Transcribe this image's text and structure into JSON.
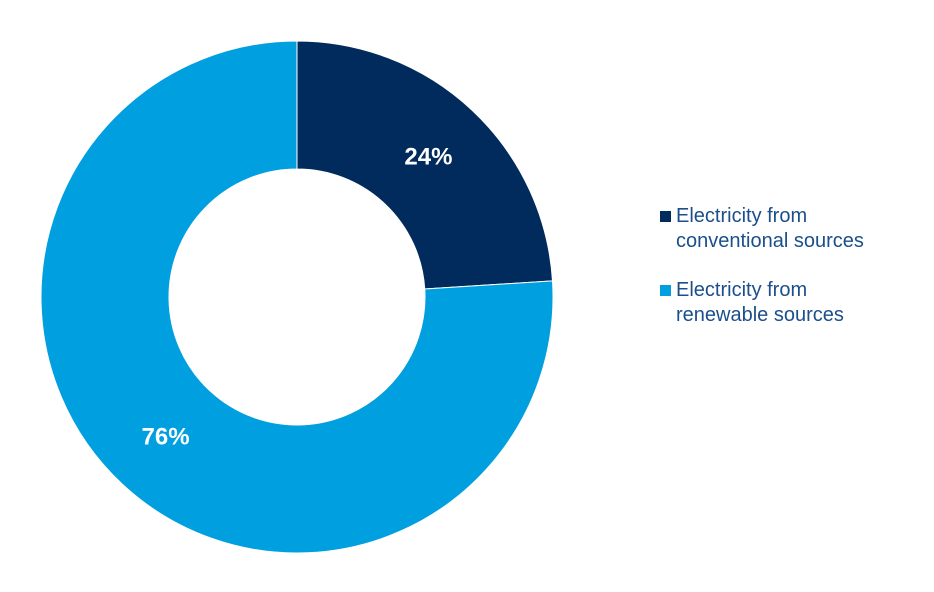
{
  "chart_data": {
    "type": "pie",
    "variant": "donut",
    "title": "",
    "legend_position": "right",
    "slices": [
      {
        "name": "Electricity from conventional sources",
        "value": 24,
        "label": "24%",
        "color": "#002B5C",
        "legend_text": "Electricity from\nconventional sources"
      },
      {
        "name": "Electricity from renewable sources",
        "value": 76,
        "label": "76%",
        "color": "#009FDF",
        "legend_text": "Electricity from\nrenewable sources"
      }
    ]
  }
}
